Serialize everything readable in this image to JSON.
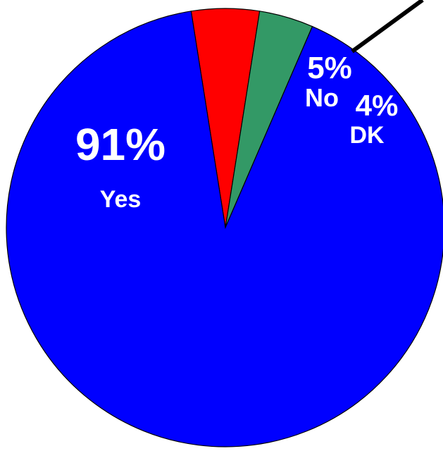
{
  "chart_data": {
    "type": "pie",
    "categories": [
      "Yes",
      "No",
      "DK"
    ],
    "values": [
      91,
      5,
      4
    ],
    "percent_labels": [
      "91%",
      "5%",
      "4%"
    ],
    "colors": [
      "#0000FF",
      "#FF0000",
      "#339966"
    ],
    "title": "",
    "legend": "none",
    "labels_inside_slices": true
  }
}
